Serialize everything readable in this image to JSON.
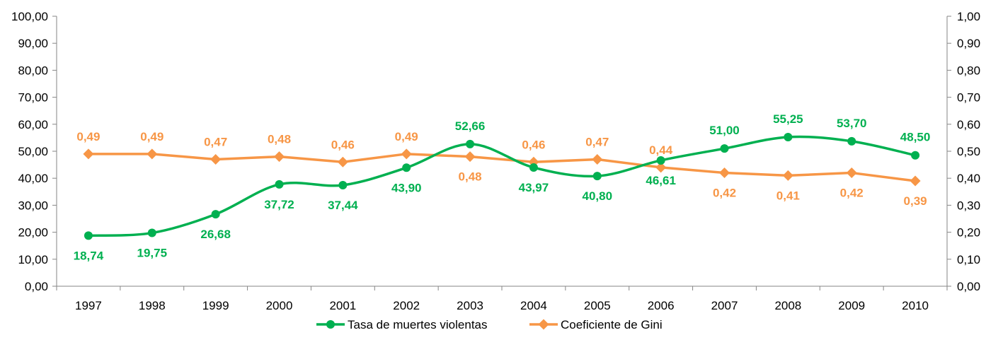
{
  "chart_data": {
    "type": "line",
    "x": [
      "1997",
      "1998",
      "1999",
      "2000",
      "2001",
      "2002",
      "2003",
      "2004",
      "2005",
      "2006",
      "2007",
      "2008",
      "2009",
      "2010"
    ],
    "y_left_ticks": [
      "0,00",
      "10,00",
      "20,00",
      "30,00",
      "40,00",
      "50,00",
      "60,00",
      "70,00",
      "80,00",
      "90,00",
      "100,00"
    ],
    "y_right_ticks": [
      "0,00",
      "0,10",
      "0,20",
      "0,30",
      "0,40",
      "0,50",
      "0,60",
      "0,70",
      "0,80",
      "0,90",
      "1,00"
    ],
    "ylim_left": [
      0,
      100
    ],
    "ylim_right": [
      0,
      1
    ],
    "grid": false,
    "legend_position": "bottom",
    "series": [
      {
        "name": "Tasa de muertes violentas",
        "axis": "left",
        "color": "#00b050",
        "marker": "circle",
        "smooth": true,
        "values": [
          18.74,
          19.75,
          26.68,
          37.72,
          37.44,
          43.9,
          52.66,
          43.97,
          40.8,
          46.61,
          51.0,
          55.25,
          53.7,
          48.5
        ],
        "labels": [
          "18,74",
          "19,75",
          "26,68",
          "37,72",
          "37,44",
          "43,90",
          "52,66",
          "43,97",
          "40,80",
          "46,61",
          "51,00",
          "55,25",
          "53,70",
          "48,50"
        ],
        "label_positions": [
          "below",
          "below",
          "below",
          "below",
          "below",
          "below",
          "above",
          "below",
          "below",
          "below",
          "above",
          "above",
          "above",
          "above"
        ]
      },
      {
        "name": "Coeficiente de Gini",
        "axis": "right",
        "color": "#f79646",
        "marker": "diamond",
        "smooth": false,
        "values": [
          0.49,
          0.49,
          0.47,
          0.48,
          0.46,
          0.49,
          0.48,
          0.46,
          0.47,
          0.44,
          0.42,
          0.41,
          0.42,
          0.39
        ],
        "labels": [
          "0,49",
          "0,49",
          "0,47",
          "0,48",
          "0,46",
          "0,49",
          "0,48",
          "0,46",
          "0,47",
          "0,44",
          "0,42",
          "0,41",
          "0,42",
          "0,39"
        ],
        "label_positions": [
          "above",
          "above",
          "above",
          "above",
          "above",
          "above",
          "below",
          "above",
          "above",
          "above",
          "below",
          "below",
          "below",
          "below"
        ]
      }
    ]
  }
}
